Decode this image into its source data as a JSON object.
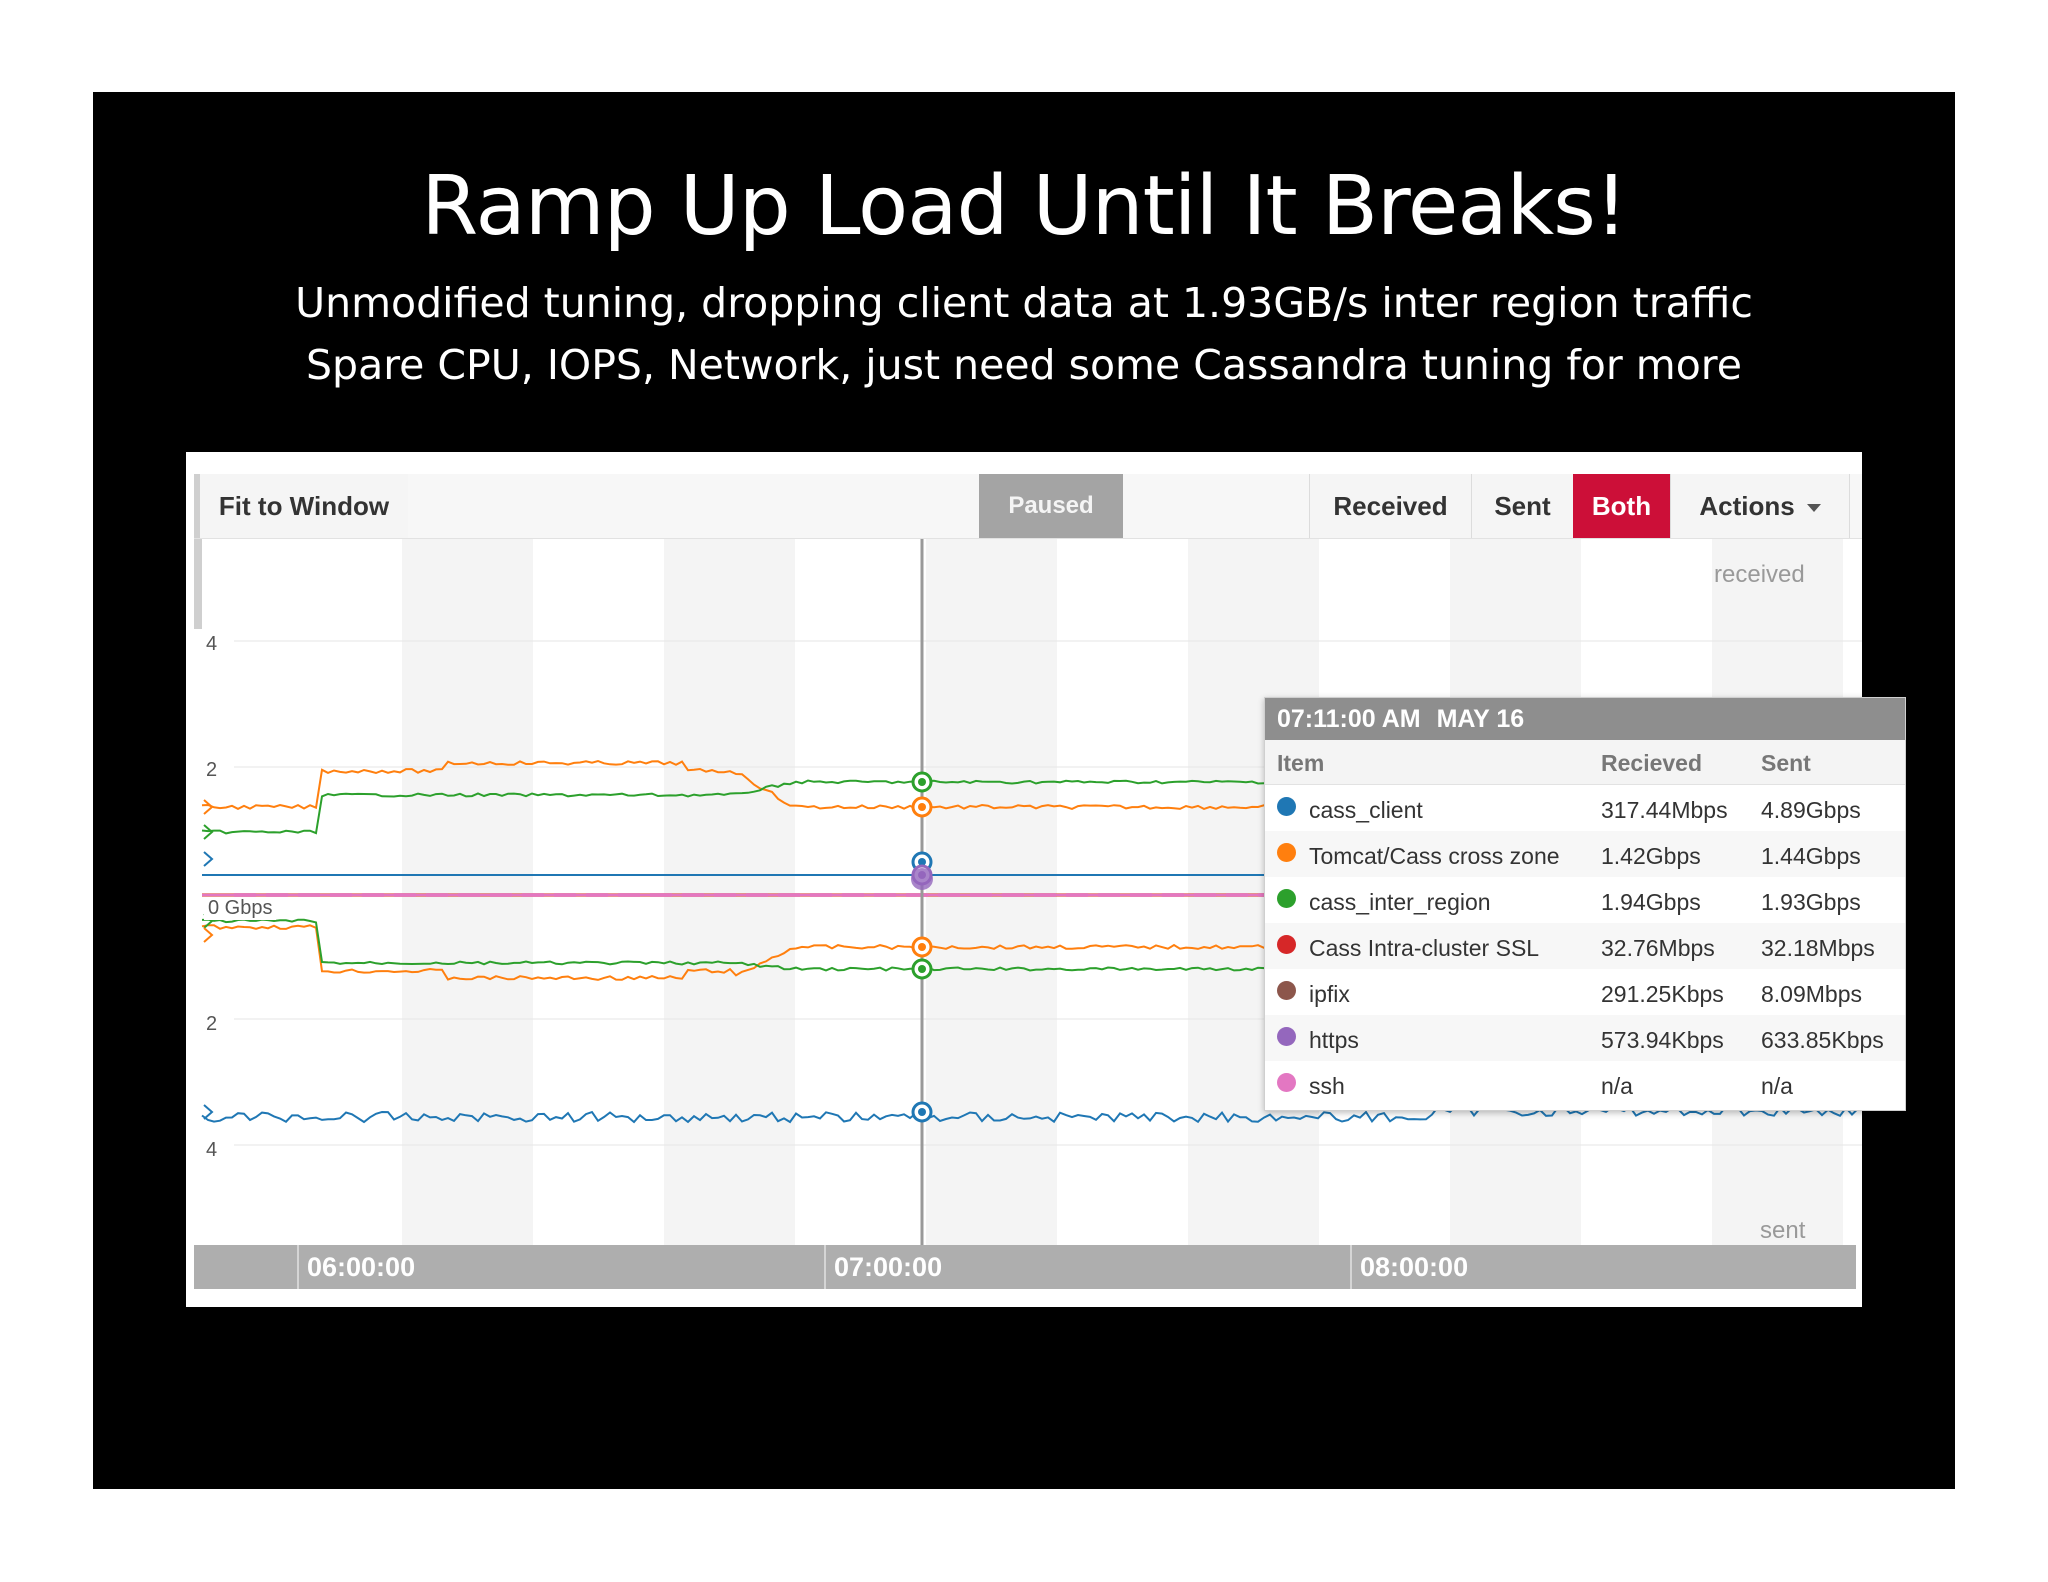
{
  "slide": {
    "title": "Ramp Up Load Until It Breaks!",
    "subtitle_1": "Unmodified tuning, dropping client data at 1.93GB/s inter region traffic",
    "subtitle_2": "Spare CPU, IOPS, Network, just need some Cassandra tuning for more"
  },
  "toolbar": {
    "fit_label": "Fit to Window",
    "paused_label": "Paused",
    "received_label": "Received",
    "sent_label": "Sent",
    "both_label": "Both",
    "actions_label": "Actions",
    "both_color": "#cc0f38"
  },
  "chart": {
    "received_label": "received",
    "sent_label": "sent",
    "zero_label": "0 Gbps",
    "y_ticks_received": [
      "4",
      "2"
    ],
    "y_ticks_sent": [
      "2",
      "4"
    ],
    "time_labels": [
      "06:00:00",
      "07:00:00",
      "08:00:00"
    ]
  },
  "tooltip": {
    "time": "07:11:00 AM",
    "date": "MAY 16",
    "col_item": "Item",
    "col_received": "Recieved",
    "col_sent": "Sent",
    "rows": [
      {
        "name": "cass_client",
        "received": "317.44Mbps",
        "sent": "4.89Gbps",
        "color": "#1f77b4"
      },
      {
        "name": "Tomcat/Cass cross zone",
        "received": "1.42Gbps",
        "sent": "1.44Gbps",
        "color": "#ff7f0e"
      },
      {
        "name": "cass_inter_region",
        "received": "1.94Gbps",
        "sent": "1.93Gbps",
        "color": "#2ca02c"
      },
      {
        "name": "Cass Intra-cluster SSL",
        "received": "32.76Mbps",
        "sent": "32.18Mbps",
        "color": "#d62728"
      },
      {
        "name": "ipfix",
        "received": "291.25Kbps",
        "sent": "8.09Mbps",
        "color": "#8c564b"
      },
      {
        "name": "https",
        "received": "573.94Kbps",
        "sent": "633.85Kbps",
        "color": "#9467bd"
      },
      {
        "name": "ssh",
        "received": "n/a",
        "sent": "n/a",
        "color": "#e377c2"
      }
    ]
  }
}
